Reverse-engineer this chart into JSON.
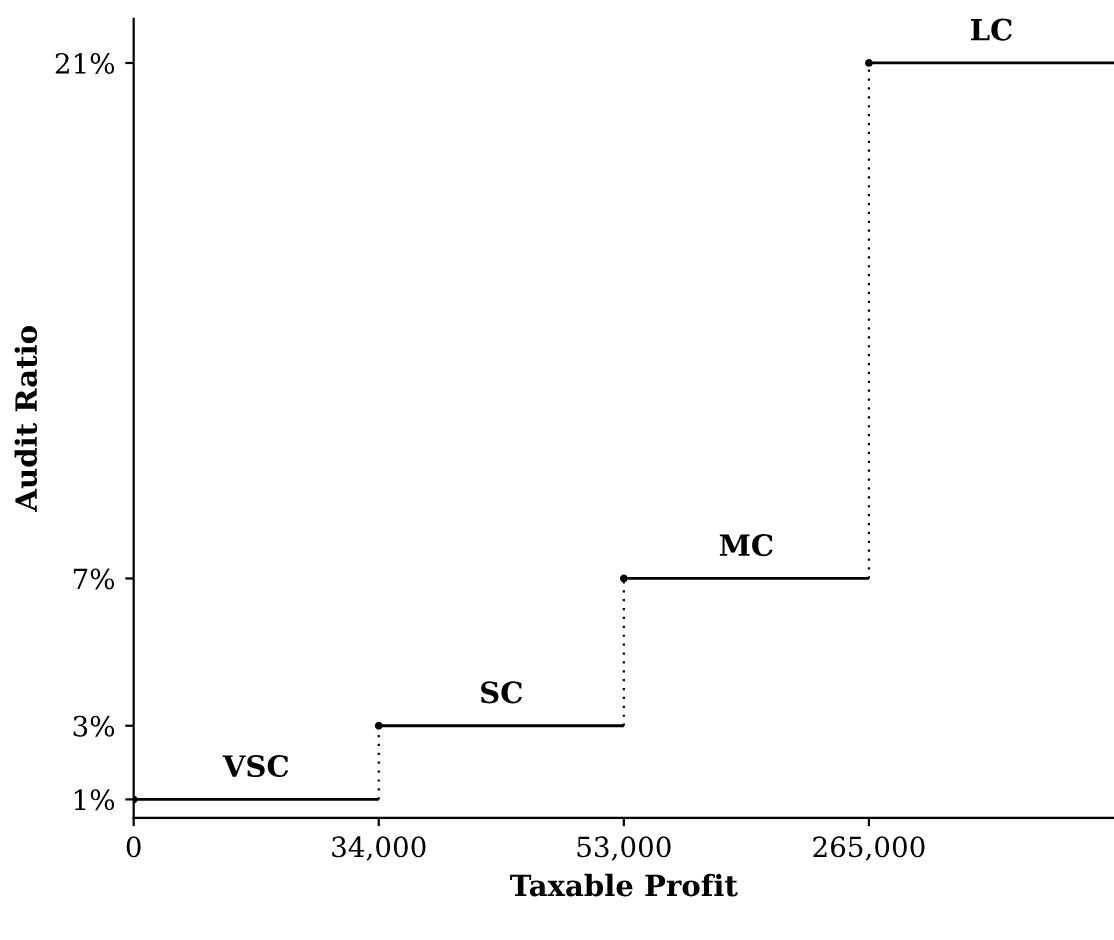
{
  "chart_data": {
    "type": "step",
    "xlabel": "Taxable Profit",
    "ylabel": "Audit Ratio",
    "categories": [
      "0",
      "34,000",
      "53,000",
      "265,000",
      null
    ],
    "series": [
      {
        "color": "#000000",
        "values": [
          1,
          3,
          7,
          21,
          21
        ]
      }
    ],
    "ylim": [
      0.5,
      22.2
    ],
    "yticks": [
      {
        "value": 1,
        "label": "1%"
      },
      {
        "value": 3,
        "label": "3%"
      },
      {
        "value": 7,
        "label": "7%"
      },
      {
        "value": 21,
        "label": "21%"
      }
    ],
    "annotations": [
      "VSC",
      "SC",
      "MC",
      "LC"
    ],
    "marker": "circle",
    "grid": false,
    "legend": false
  }
}
